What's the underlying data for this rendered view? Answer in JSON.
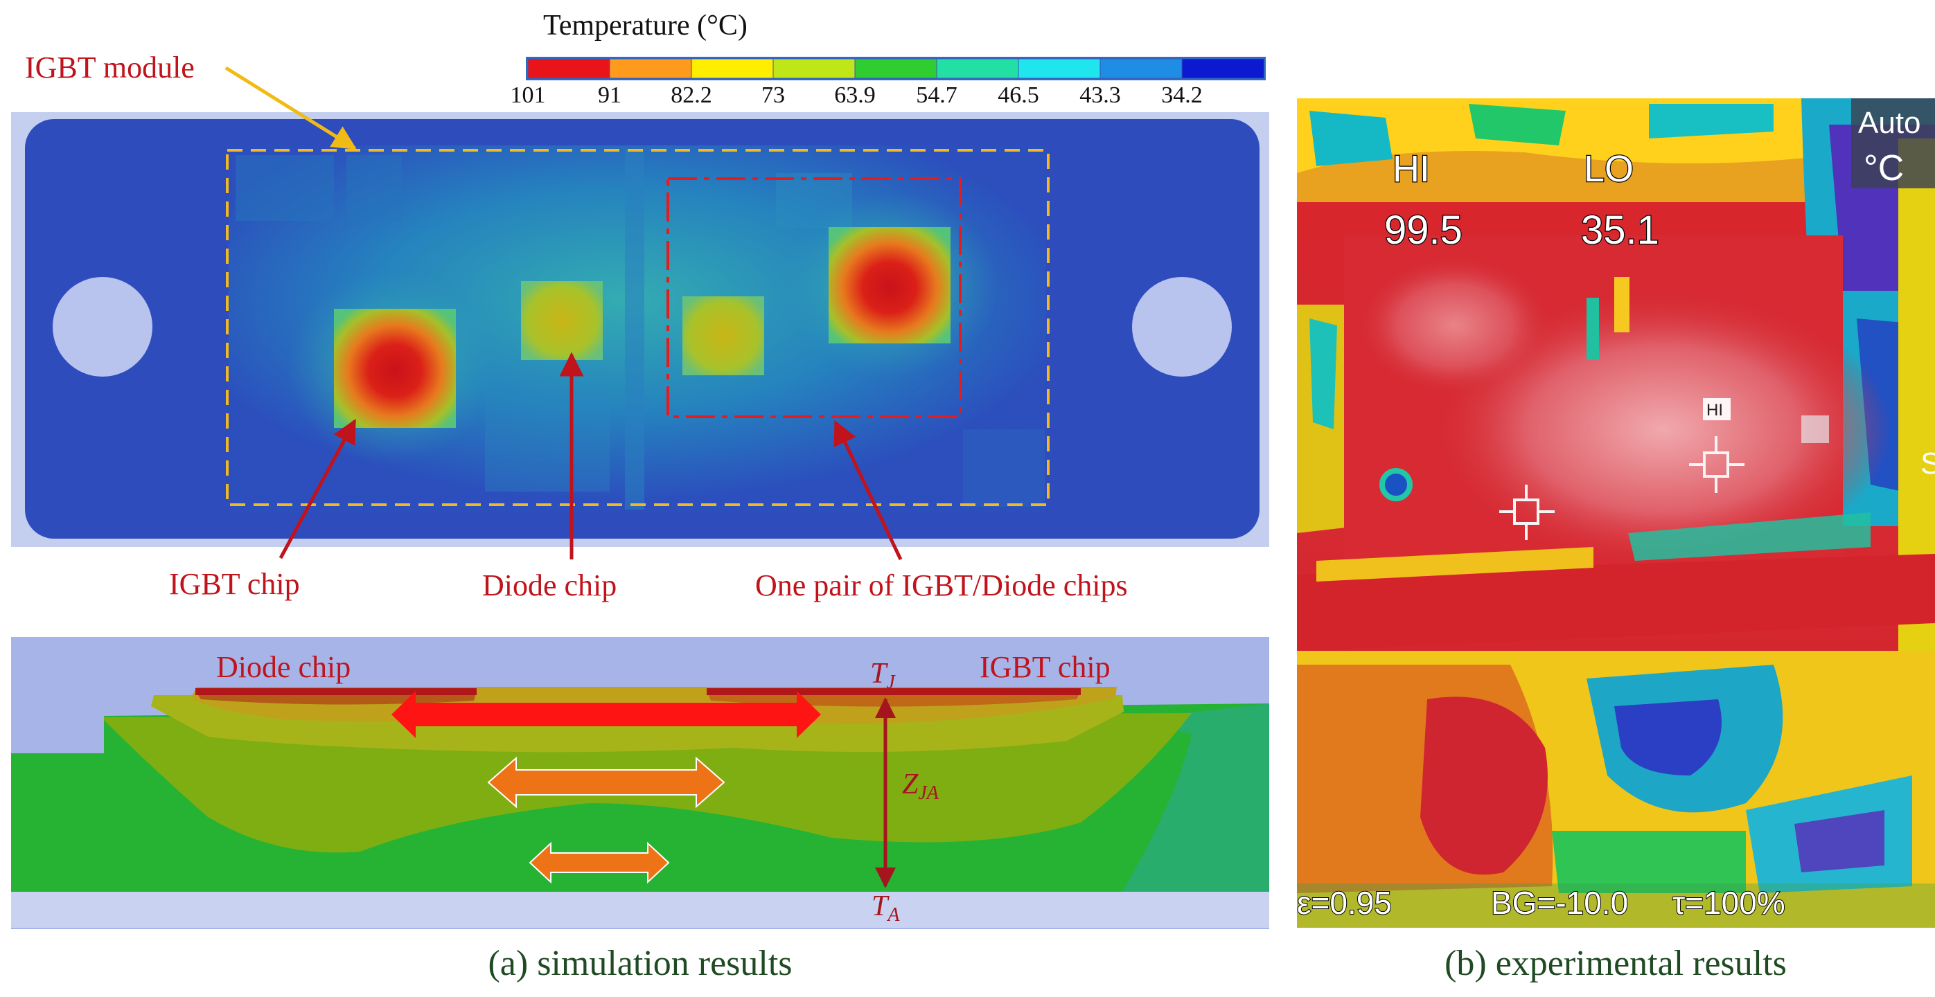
{
  "colorbar": {
    "title": "Temperature (°C)",
    "ticks": [
      "101",
      "91",
      "82.2",
      "73",
      "63.9",
      "54.7",
      "46.5",
      "43.3",
      "34.2"
    ],
    "colors": [
      "#e8141a",
      "#ff9a1c",
      "#ffee00",
      "#bfe617",
      "#2fcd2f",
      "#22e0a4",
      "#1ee6ec",
      "#1f8de3",
      "#0b1ad0"
    ]
  },
  "simulation_top": {
    "module_label": "IGBT module",
    "igbt_chip_label": "IGBT chip",
    "diode_chip_label": "Diode chip",
    "pair_label": "One pair of IGBT/Diode chips"
  },
  "cross_section": {
    "diode_chip_label": "Diode chip",
    "igbt_chip_label": "IGBT chip",
    "tj_main": "T",
    "tj_sub": "J",
    "zja_main": "Z",
    "zja_sub": "JA",
    "ta_main": "T",
    "ta_sub": "A"
  },
  "thermal_camera": {
    "hi_label": "HI",
    "lo_label": "LO",
    "hi_value": "99.5",
    "lo_value": "35.1",
    "mode": "Auto",
    "unit": "°C",
    "marker_label": "HI",
    "emissivity": "ε=0.95",
    "bg": "BG=-10.0",
    "transmission": "τ=100%",
    "edge_char": "S"
  },
  "captions": {
    "a": "(a) simulation results",
    "b": "(b) experimental results"
  },
  "palette": {
    "label_red": "#c0131b",
    "caption_green": "#1f4a22",
    "arrow_orange": "#f1bb15",
    "module_border": "#1d2d9a"
  }
}
